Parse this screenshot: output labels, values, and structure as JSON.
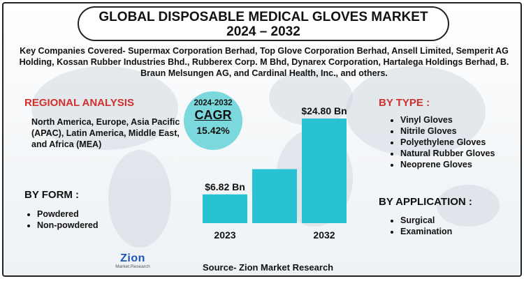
{
  "title_line1": "GLOBAL DISPOSABLE MEDICAL GLOVES MARKET",
  "title_line2": "2024 – 2032",
  "companies_text": "Key Companies Covered- Supermax Corporation Berhad, Top Glove Corporation Berhad, Ansell Limited, Semperit AG Holding, Kossan Rubber Industries Bhd., Rubberex Corp. M Bhd, Dynarex Corporation, Hartalega Holdings Berhad, B. Braun Melsungen AG, and Cardinal Health, Inc., and others.",
  "regional": {
    "heading": "REGIONAL ANALYSIS",
    "text": "North America, Europe, Asia Pacific (APAC), Latin America, Middle East, and Africa (MEA)"
  },
  "by_form": {
    "heading": "BY FORM :",
    "items": [
      "Powdered",
      "Non-powdered"
    ]
  },
  "by_type": {
    "heading": "BY TYPE :",
    "items": [
      "Vinyl Gloves",
      "Nitrile Gloves",
      "Polyethylene Gloves",
      "Natural Rubber Gloves",
      "Neoprene Gloves"
    ]
  },
  "by_application": {
    "heading": "BY APPLICATION :",
    "items": [
      "Surgical",
      "Examination"
    ]
  },
  "cagr": {
    "period": "2024-2032",
    "label": "CAGR",
    "value": "15.42%"
  },
  "chart_data": {
    "type": "bar",
    "categories": [
      "2023",
      "",
      "2032"
    ],
    "values": [
      6.82,
      12.8,
      24.8
    ],
    "data_labels": [
      "$6.82 Bn",
      "",
      "$24.80 Bn"
    ],
    "bar_color": "#29c2d2"
  },
  "source": "Source- Zion Market Research",
  "logo": {
    "name": "Zion",
    "subtitle": "Market.Research"
  },
  "colors": {
    "accent_red": "#d0312d",
    "bar": "#29c2d2",
    "cagr_circle": "#7bd9de"
  }
}
